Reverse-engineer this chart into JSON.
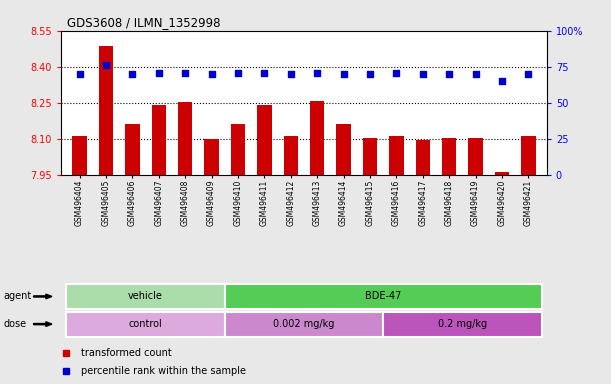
{
  "title": "GDS3608 / ILMN_1352998",
  "samples": [
    "GSM496404",
    "GSM496405",
    "GSM496406",
    "GSM496407",
    "GSM496408",
    "GSM496409",
    "GSM496410",
    "GSM496411",
    "GSM496412",
    "GSM496413",
    "GSM496414",
    "GSM496415",
    "GSM496416",
    "GSM496417",
    "GSM496418",
    "GSM496419",
    "GSM496420",
    "GSM496421"
  ],
  "bar_values": [
    8.113,
    8.487,
    8.163,
    8.243,
    8.253,
    8.102,
    8.163,
    8.243,
    8.113,
    8.26,
    8.163,
    8.103,
    8.113,
    8.097,
    8.103,
    8.103,
    7.963,
    8.113
  ],
  "dot_values": [
    70,
    76,
    70,
    71,
    71,
    70,
    71,
    71,
    70,
    71,
    70,
    70,
    71,
    70,
    70,
    70,
    65,
    70
  ],
  "ylim_left": [
    7.95,
    8.55
  ],
  "ylim_right": [
    0,
    100
  ],
  "yticks_left": [
    7.95,
    8.1,
    8.25,
    8.4,
    8.55
  ],
  "yticks_right": [
    0,
    25,
    50,
    75,
    100
  ],
  "bar_color": "#cc0000",
  "dot_color": "#0000cc",
  "bar_bottom": 7.95,
  "agent_groups": [
    {
      "label": "vehicle",
      "start": 0,
      "end": 6,
      "color": "#aaddaa"
    },
    {
      "label": "BDE-47",
      "start": 6,
      "end": 18,
      "color": "#55cc55"
    }
  ],
  "dose_groups": [
    {
      "label": "control",
      "start": 0,
      "end": 6,
      "color": "#ddaadd"
    },
    {
      "label": "0.002 mg/kg",
      "start": 6,
      "end": 12,
      "color": "#cc88cc"
    },
    {
      "label": "0.2 mg/kg",
      "start": 12,
      "end": 18,
      "color": "#bb66bb"
    }
  ],
  "legend_bar_label": "transformed count",
  "legend_dot_label": "percentile rank within the sample",
  "plot_bg": "#ffffff",
  "fig_bg": "#e8e8e8"
}
